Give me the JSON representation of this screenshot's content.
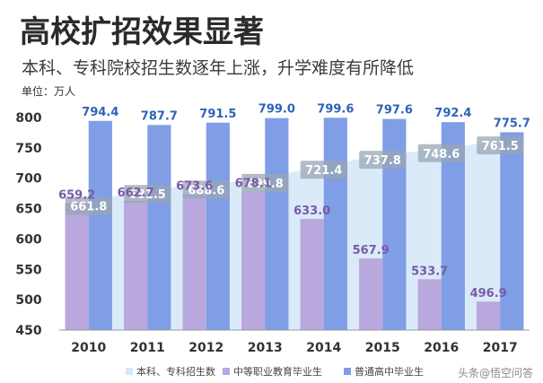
{
  "chart_data": {
    "type": "bar",
    "title": "高校扩招效果显著",
    "subtitle": "本科、专科院校招生数逐年上涨，升学难度有所降低",
    "unit_label": "单位：万人",
    "categories": [
      "2010",
      "2011",
      "2012",
      "2013",
      "2014",
      "2015",
      "2016",
      "2017"
    ],
    "ylim": [
      450,
      800
    ],
    "yticks": [
      "450",
      "500",
      "550",
      "600",
      "650",
      "700",
      "750",
      "800"
    ],
    "grid": false,
    "legend_position": "bottom-center",
    "series": [
      {
        "name": "本科、专科招生数",
        "render": "area",
        "color": "#d6e8f8",
        "values": [
          661.8,
          681.5,
          688.6,
          699.8,
          721.4,
          737.8,
          748.6,
          761.5
        ],
        "labels": [
          "661.8",
          "681.5",
          "688.6",
          "699.8",
          "721.4",
          "737.8",
          "748.6",
          "761.5"
        ]
      },
      {
        "name": "中等职业教育毕业生",
        "render": "bar",
        "color": "#b9a8dd",
        "label_color": "#7a5aa8",
        "values": [
          659.2,
          662.7,
          673.6,
          678.1,
          633.0,
          567.9,
          533.7,
          496.9
        ],
        "labels": [
          "659.2",
          "662.7",
          "673.6",
          "678.1",
          "633.0",
          "567.9",
          "533.7",
          "496.9"
        ]
      },
      {
        "name": "普通高中毕业生",
        "render": "bar",
        "color": "#7f9ee6",
        "label_color": "#2e63b8",
        "values": [
          794.4,
          787.7,
          791.5,
          799.0,
          799.6,
          797.6,
          792.4,
          775.7
        ],
        "labels": [
          "794.4",
          "787.7",
          "791.5",
          "799.0",
          "799.6",
          "797.6",
          "792.4",
          "775.7"
        ]
      }
    ]
  },
  "watermark": "头条@悟空问答"
}
